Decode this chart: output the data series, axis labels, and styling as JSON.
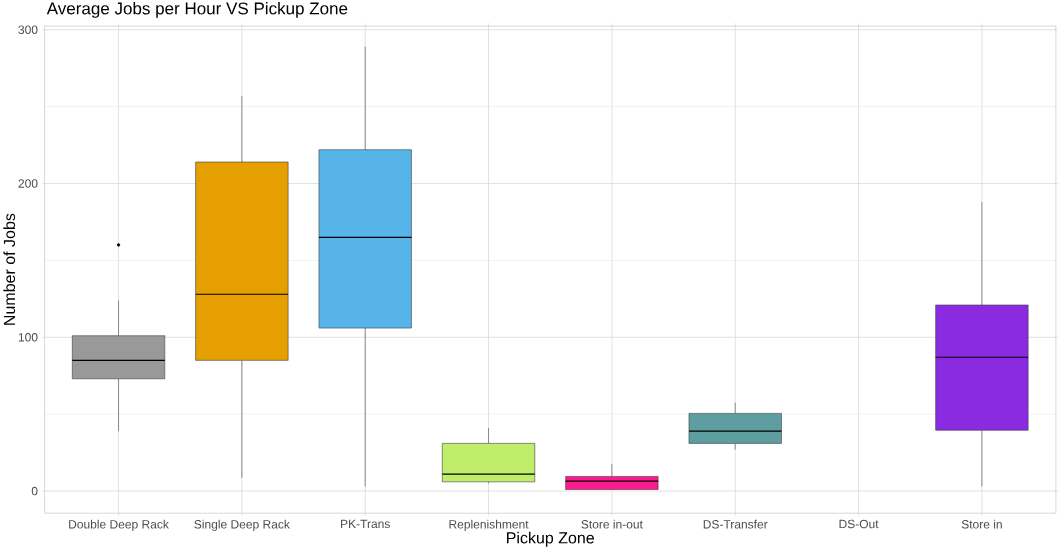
{
  "chart_data": {
    "type": "box",
    "title": "Average Jobs per Hour VS Pickup Zone",
    "xlabel": "Pickup Zone",
    "ylabel": "Number of Jobs",
    "categories": [
      "Double Deep Rack",
      "Single Deep Rack",
      "PK-Trans",
      "Replenishment",
      "Store in-out",
      "DS-Transfer",
      "DS-Out",
      "Store in"
    ],
    "colors": [
      "#999999",
      "#e69f00",
      "#56b4e9",
      "#bfee6a",
      "#fc1a8f",
      "#5f9ea0",
      null,
      "#8a2be2"
    ],
    "boxes": [
      {
        "low": 39,
        "q1": 73,
        "median": 85,
        "q3": 101,
        "high": 124,
        "outliers": [
          160
        ]
      },
      {
        "low": 8.5,
        "q1": 85,
        "median": 128,
        "q3": 214,
        "high": 257
      },
      {
        "low": 3,
        "q1": 106,
        "median": 165,
        "q3": 222,
        "high": 289
      },
      {
        "low": 5,
        "q1": 6,
        "median": 11,
        "q3": 31,
        "high": 41
      },
      {
        "low": 1,
        "q1": 1,
        "median": 6.5,
        "q3": 9.5,
        "high": 17.5
      },
      {
        "low": 27,
        "q1": 31,
        "median": 39,
        "q3": 50.5,
        "high": 57.5
      },
      null,
      {
        "low": 3,
        "q1": 39.5,
        "median": 87,
        "q3": 121,
        "high": 188
      }
    ],
    "ylim": [
      -14.4,
      302.4
    ],
    "yticks": [
      0,
      100,
      200,
      300
    ],
    "grid": true
  }
}
